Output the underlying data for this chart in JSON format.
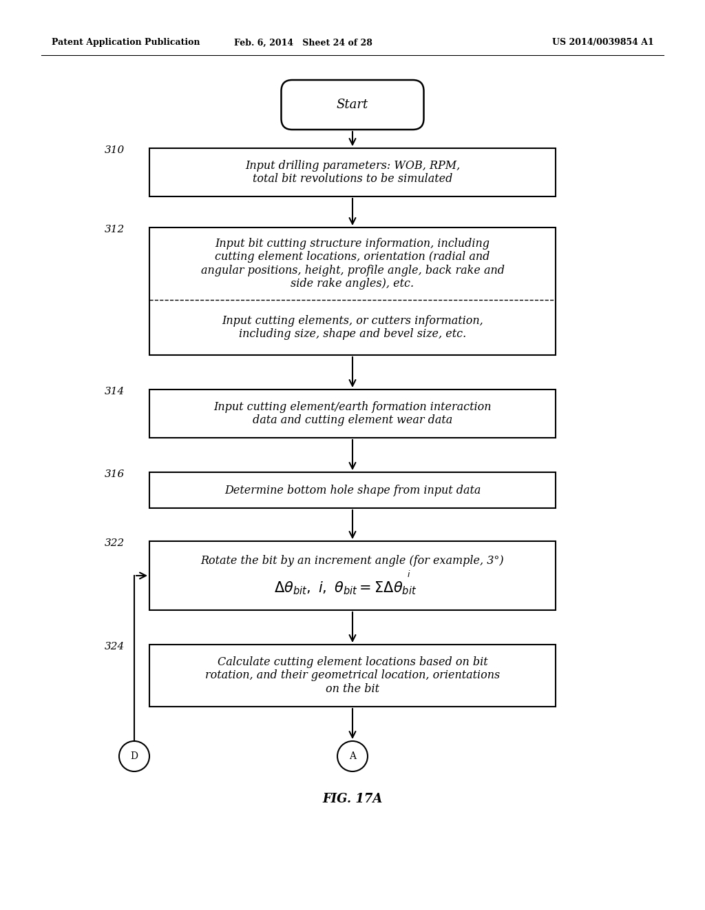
{
  "header_left": "Patent Application Publication",
  "header_mid": "Feb. 6, 2014   Sheet 24 of 28",
  "header_right": "US 2014/0039854 A1",
  "fig_label": "FIG. 17A",
  "background_color": "#ffffff",
  "box_312_top_text": "Input bit cutting structure information, including\ncutting element locations, orientation (radial and\nangular positions, height, profile angle, back rake and\nside rake angles), etc.",
  "box_312_bot_text": "Input cutting elements, or cutters information,\nincluding size, shape and bevel size, etc.",
  "box_310_text": "Input drilling parameters: WOB, RPM,\ntotal bit revolutions to be simulated",
  "box_314_text": "Input cutting element/earth formation interaction\ndata and cutting element wear data",
  "box_316_text": "Determine bottom hole shape from input data",
  "box_322_line1": "Rotate the bit by an increment angle (for example, 3°)",
  "box_324_text": "Calculate cutting element locations based on bit\nrotation, and their geometrical location, orientations\non the bit"
}
